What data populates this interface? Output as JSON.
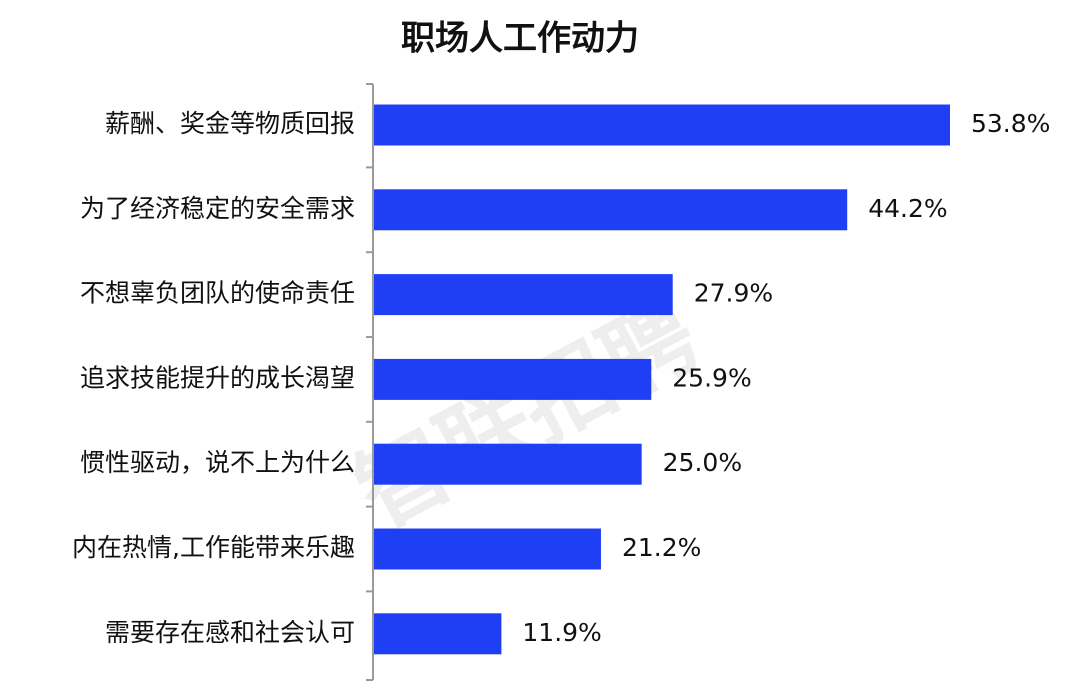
{
  "watermark": "智联招聘",
  "colors": {
    "bar": "#1f3ff5",
    "axis": "#9a9a9a",
    "text": "#111111"
  },
  "chart_data": {
    "type": "bar",
    "orientation": "horizontal",
    "title": "职场人工作动力",
    "categories": [
      "薪酬、奖金等物质回报",
      "为了经济稳定的安全需求",
      "不想辜负团队的使命责任",
      "追求技能提升的成长渴望",
      "惯性驱动，说不上为什么",
      "内在热情,工作能带来乐趣",
      "需要存在感和社会认可"
    ],
    "values": [
      53.8,
      44.2,
      27.9,
      25.9,
      25.0,
      21.2,
      11.9
    ],
    "value_labels": [
      "53.8%",
      "44.2%",
      "27.9%",
      "25.9%",
      "25.0%",
      "21.2%",
      "11.9%"
    ],
    "xlim": [
      0,
      53.8
    ],
    "xlabel": "",
    "ylabel": "",
    "grid": false,
    "legend": "none"
  }
}
